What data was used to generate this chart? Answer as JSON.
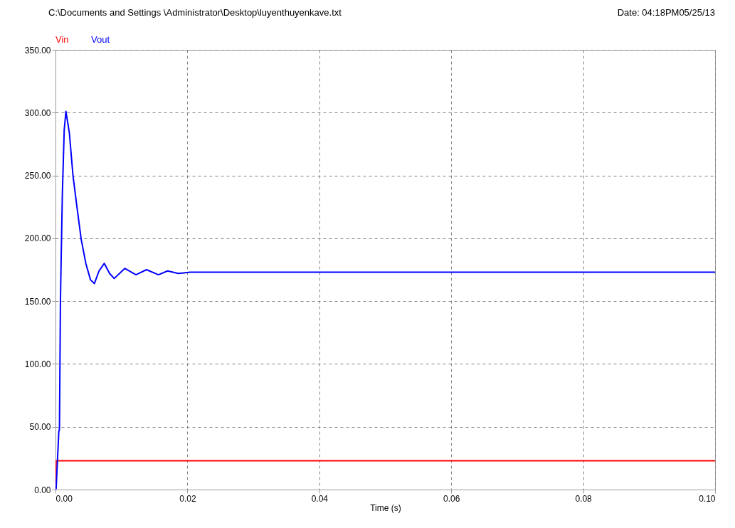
{
  "chart_data": {
    "type": "line",
    "title": "C:\\Documents and Settings \\Administrator\\Desktop\\luyenthuyenkave.txt",
    "annotations": [
      "Date: 04:18PM05/25/13"
    ],
    "xlabel": "Time (s)",
    "xlim": [
      0,
      0.1
    ],
    "xticks": [
      {
        "value": 0,
        "label": "0.00"
      },
      {
        "value": 0.02,
        "label": "0.02"
      },
      {
        "value": 0.04,
        "label": "0.04"
      },
      {
        "value": 0.06,
        "label": "0.06"
      },
      {
        "value": 0.08,
        "label": "0.08"
      },
      {
        "value": 0.1,
        "label": "0.10"
      }
    ],
    "ylim": [
      0,
      350
    ],
    "yticks": [
      {
        "value": 0,
        "label": "0.00"
      },
      {
        "value": 50,
        "label": "50.00"
      },
      {
        "value": 100,
        "label": "100.00"
      },
      {
        "value": 150,
        "label": "150.00"
      },
      {
        "value": 200,
        "label": "200.00"
      },
      {
        "value": 250,
        "label": "250.00"
      },
      {
        "value": 300,
        "label": "300.00"
      },
      {
        "value": 350,
        "label": "350.00"
      }
    ],
    "grid": true,
    "legend": "top left",
    "series": [
      {
        "name": "Vin",
        "color": "#ff0000",
        "x": [
          0,
          0.0001,
          0.1
        ],
        "values": [
          0,
          23,
          23
        ]
      },
      {
        "name": "Vout",
        "color": "#0000ff",
        "x": [
          0,
          0.0001,
          0.0005,
          0.0006,
          0.00075,
          0.00086,
          0.00104,
          0.00132,
          0.00158,
          0.0021,
          0.00265,
          0.0032,
          0.0039,
          0.0046,
          0.0053,
          0.0059,
          0.0066,
          0.0074,
          0.0082,
          0.0089,
          0.0105,
          0.0122,
          0.0138,
          0.0156,
          0.017,
          0.0186,
          0.0204,
          0.03,
          0.05,
          0.07,
          0.1
        ],
        "values": [
          0,
          1,
          46,
          48,
          150,
          184,
          235,
          286,
          301,
          284,
          250,
          227,
          199,
          180,
          167,
          164,
          174,
          180,
          172,
          168,
          176,
          171,
          175,
          171,
          174,
          172,
          173,
          173,
          173,
          173,
          173
        ]
      }
    ]
  }
}
